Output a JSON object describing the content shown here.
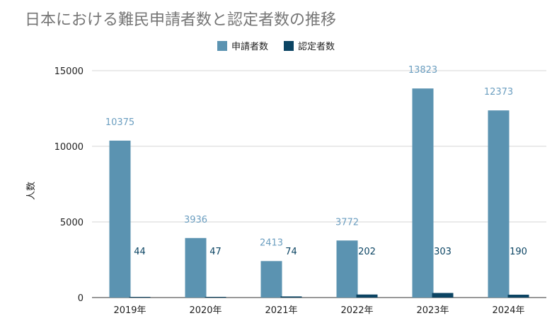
{
  "colors": {
    "applications": "#5b93b1",
    "recognized": "#0b4463",
    "applications_label": "#6b9ec0",
    "recognized_label": "#0b4463"
  },
  "chart_data": {
    "type": "bar",
    "title": "日本における難民申請者数と認定者数の推移",
    "categories": [
      "2019年",
      "2020年",
      "2021年",
      "2022年",
      "2023年",
      "2024年"
    ],
    "series": [
      {
        "name": "申請者数",
        "values": [
          10375,
          3936,
          2413,
          3772,
          13823,
          12373
        ]
      },
      {
        "name": "認定者数",
        "values": [
          44,
          47,
          74,
          202,
          303,
          190
        ]
      }
    ],
    "ylabel": "人数",
    "xlabel": "",
    "ylim": [
      0,
      15000
    ],
    "yticks": [
      0,
      5000,
      10000,
      15000
    ],
    "grid": true,
    "legend_position": "top-center",
    "data_labels": true
  }
}
